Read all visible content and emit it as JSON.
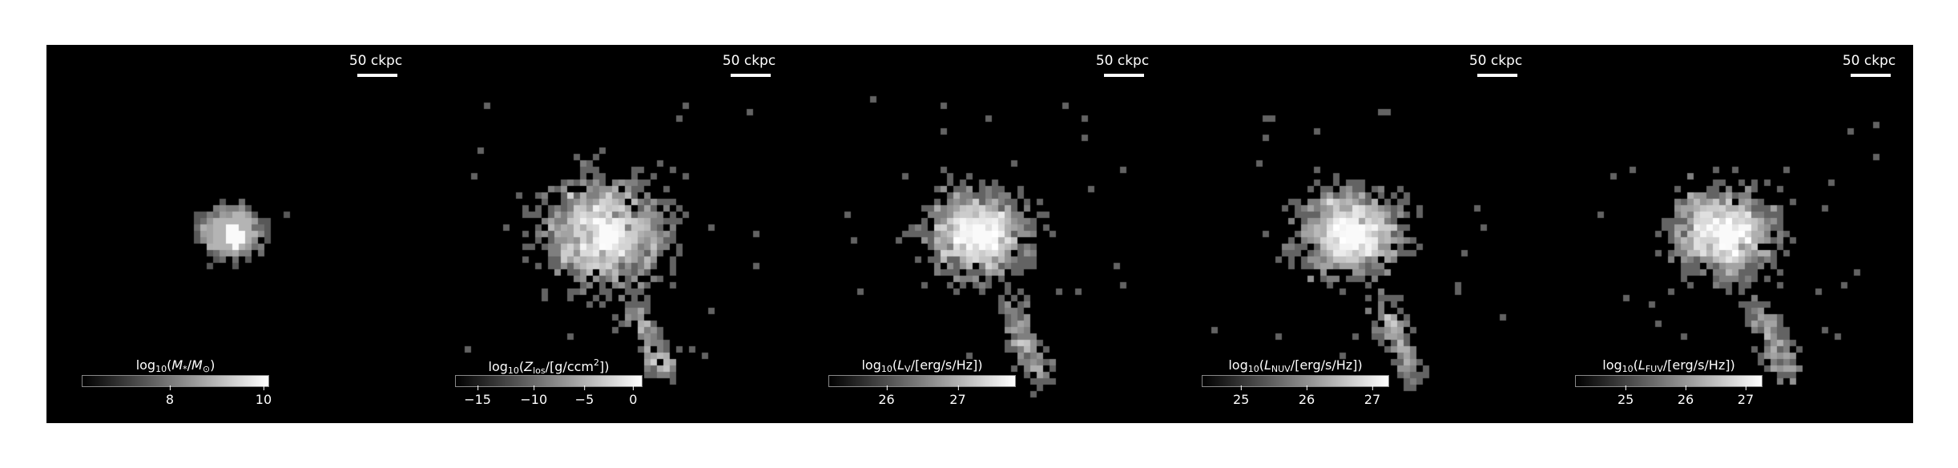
{
  "panels": [
    {
      "id": "stellar-mass",
      "scale_label": "50 ckpc",
      "cbar": {
        "pre": "log",
        "sub": "10",
        "open": "(",
        "parts": [
          {
            "t": "M",
            "it": true
          },
          {
            "t": "*",
            "sub": true
          },
          {
            "t": "/"
          },
          {
            "t": "M",
            "it": true
          },
          {
            "t": "⊙",
            "sub": true
          },
          {
            "t": ")"
          }
        ]
      },
      "ticks": [
        {
          "label": "8",
          "pos": 0.47
        },
        {
          "label": "10",
          "pos": 0.97
        }
      ],
      "spread": 0.55,
      "seed": 11
    },
    {
      "id": "metal-density",
      "scale_label": "50 ckpc",
      "cbar": {
        "pre": "log",
        "sub": "10",
        "open": "(",
        "parts": [
          {
            "t": "Z",
            "it": true
          },
          {
            "t": "los",
            "sub": true
          },
          {
            "t": "/[g/ccm"
          },
          {
            "t": "2",
            "sup": true
          },
          {
            "t": "])"
          }
        ]
      },
      "ticks": [
        {
          "label": "−15",
          "pos": 0.12
        },
        {
          "label": "−10",
          "pos": 0.42
        },
        {
          "label": "−5",
          "pos": 0.69
        },
        {
          "label": "0",
          "pos": 0.95
        }
      ],
      "spread": 1.25,
      "seed": 29
    },
    {
      "id": "v-band-luminosity",
      "scale_label": "50 ckpc",
      "cbar": {
        "pre": "log",
        "sub": "10",
        "open": "(",
        "parts": [
          {
            "t": "L",
            "it": true
          },
          {
            "t": "V",
            "sub": true
          },
          {
            "t": "/[erg/s/Hz])"
          }
        ]
      },
      "ticks": [
        {
          "label": "26",
          "pos": 0.31
        },
        {
          "label": "27",
          "pos": 0.69
        }
      ],
      "spread": 1.0,
      "seed": 47
    },
    {
      "id": "nuv-luminosity",
      "scale_label": "50 ckpc",
      "cbar": {
        "pre": "log",
        "sub": "10",
        "open": "(",
        "parts": [
          {
            "t": "L",
            "it": true
          },
          {
            "t": "NUV",
            "sub": true
          },
          {
            "t": "/[erg/s/Hz])"
          }
        ]
      },
      "ticks": [
        {
          "label": "25",
          "pos": 0.21
        },
        {
          "label": "26",
          "pos": 0.56
        },
        {
          "label": "27",
          "pos": 0.91
        }
      ],
      "spread": 1.0,
      "seed": 63
    },
    {
      "id": "fuv-luminosity",
      "scale_label": "50 ckpc",
      "cbar": {
        "pre": "log",
        "sub": "10",
        "open": "(",
        "parts": [
          {
            "t": "L",
            "it": true
          },
          {
            "t": "FUV",
            "sub": true
          },
          {
            "t": "/[erg/s/Hz])"
          }
        ]
      },
      "ticks": [
        {
          "label": "25",
          "pos": 0.27
        },
        {
          "label": "26",
          "pos": 0.59
        },
        {
          "label": "27",
          "pos": 0.91
        }
      ],
      "spread": 1.0,
      "seed": 81
    }
  ]
}
